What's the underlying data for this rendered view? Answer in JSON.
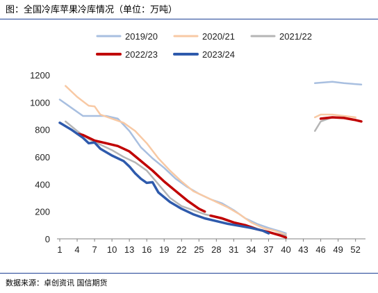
{
  "header": {
    "title": "图：全国冷库苹果冷库情况（单位：万吨）"
  },
  "footer": {
    "source": "数据来源：卓创资讯  国信期货"
  },
  "chart_data": {
    "type": "line",
    "title": "",
    "xlabel": "",
    "ylabel": "",
    "xlim": [
      1,
      53
    ],
    "ylim": [
      0,
      1200
    ],
    "grid": false,
    "legend_position": "top",
    "x_ticks": [
      1,
      4,
      7,
      10,
      13,
      16,
      19,
      22,
      25,
      28,
      31,
      34,
      37,
      40,
      43,
      46,
      49,
      52
    ],
    "y_ticks": [
      0,
      200,
      400,
      600,
      800,
      1000,
      1200
    ],
    "series": [
      {
        "name": "2019/20",
        "color": "#a8bfe0",
        "width": 2.5,
        "segments": [
          [
            [
              1,
              1020
            ],
            [
              3,
              960
            ],
            [
              5,
              900
            ],
            [
              7,
              900
            ],
            [
              9,
              900
            ],
            [
              11,
              880
            ],
            [
              13,
              790
            ],
            [
              15,
              670
            ],
            [
              17,
              590
            ],
            [
              19,
              520
            ],
            [
              21,
              440
            ],
            [
              23,
              380
            ],
            [
              25,
              330
            ],
            [
              27,
              290
            ],
            [
              29,
              260
            ],
            [
              31,
              210
            ],
            [
              33,
              150
            ],
            [
              35,
              110
            ],
            [
              37,
              80
            ],
            [
              39,
              55
            ],
            [
              40,
              40
            ]
          ],
          [
            [
              45,
              1140
            ],
            [
              48,
              1150
            ],
            [
              50,
              1140
            ],
            [
              53,
              1130
            ]
          ]
        ]
      },
      {
        "name": "2020/21",
        "color": "#f8c9a4",
        "width": 2.5,
        "segments": [
          [
            [
              2,
              1120
            ],
            [
              4,
              1040
            ],
            [
              6,
              975
            ],
            [
              7,
              970
            ],
            [
              8,
              910
            ],
            [
              10,
              880
            ],
            [
              12,
              850
            ],
            [
              14,
              790
            ],
            [
              16,
              700
            ],
            [
              18,
              590
            ],
            [
              20,
              500
            ],
            [
              22,
              420
            ],
            [
              24,
              350
            ],
            [
              26,
              310
            ],
            [
              28,
              270
            ],
            [
              30,
              230
            ],
            [
              32,
              180
            ],
            [
              34,
              120
            ],
            [
              36,
              80
            ],
            [
              38,
              60
            ],
            [
              40,
              30
            ]
          ],
          [
            [
              45,
              890
            ],
            [
              46,
              910
            ],
            [
              48,
              910
            ],
            [
              50,
              900
            ],
            [
              52,
              890
            ]
          ]
        ]
      },
      {
        "name": "2021/22",
        "color": "#b5b5b5",
        "width": 2.5,
        "segments": [
          [
            [
              2,
              860
            ],
            [
              4,
              790
            ],
            [
              6,
              730
            ],
            [
              8,
              690
            ],
            [
              10,
              650
            ],
            [
              12,
              600
            ],
            [
              14,
              560
            ],
            [
              16,
              500
            ],
            [
              18,
              400
            ],
            [
              20,
              300
            ],
            [
              22,
              240
            ],
            [
              24,
              210
            ],
            [
              26,
              180
            ],
            [
              28,
              160
            ],
            [
              30,
              130
            ],
            [
              32,
              110
            ],
            [
              34,
              90
            ],
            [
              36,
              60
            ],
            [
              38,
              40
            ],
            [
              40,
              25
            ]
          ],
          [
            [
              45,
              790
            ],
            [
              46,
              860
            ],
            [
              48,
              890
            ],
            [
              50,
              890
            ]
          ]
        ]
      },
      {
        "name": "2022/23",
        "color": "#c00000",
        "width": 3.5,
        "segments": [
          [
            [
              4,
              770
            ],
            [
              5,
              760
            ],
            [
              7,
              720
            ],
            [
              9,
              700
            ],
            [
              11,
              680
            ],
            [
              13,
              640
            ],
            [
              15,
              570
            ],
            [
              17,
              500
            ],
            [
              19,
              420
            ],
            [
              21,
              350
            ],
            [
              23,
              280
            ],
            [
              25,
              220
            ],
            [
              26,
              200
            ]
          ],
          [
            [
              27,
              170
            ],
            [
              29,
              150
            ],
            [
              31,
              120
            ],
            [
              33,
              100
            ],
            [
              35,
              70
            ],
            [
              37,
              50
            ],
            [
              39,
              25
            ],
            [
              40,
              10
            ]
          ],
          [
            [
              46,
              880
            ],
            [
              48,
              890
            ],
            [
              50,
              885
            ],
            [
              52,
              870
            ],
            [
              53,
              860
            ]
          ]
        ]
      },
      {
        "name": "2023/24",
        "color": "#2e5aac",
        "width": 3.5,
        "segments": [
          [
            [
              1,
              850
            ],
            [
              3,
              800
            ],
            [
              5,
              740
            ],
            [
              6,
              700
            ],
            [
              7,
              705
            ],
            [
              8,
              660
            ],
            [
              10,
              610
            ],
            [
              12,
              570
            ],
            [
              13,
              530
            ],
            [
              14,
              480
            ],
            [
              15,
              440
            ],
            [
              16,
              410
            ],
            [
              17,
              415
            ],
            [
              18,
              340
            ],
            [
              20,
              270
            ],
            [
              22,
              220
            ],
            [
              24,
              180
            ],
            [
              26,
              150
            ],
            [
              28,
              130
            ],
            [
              30,
              110
            ],
            [
              32,
              95
            ],
            [
              34,
              80
            ],
            [
              36,
              60
            ],
            [
              37,
              40
            ]
          ]
        ]
      }
    ]
  }
}
